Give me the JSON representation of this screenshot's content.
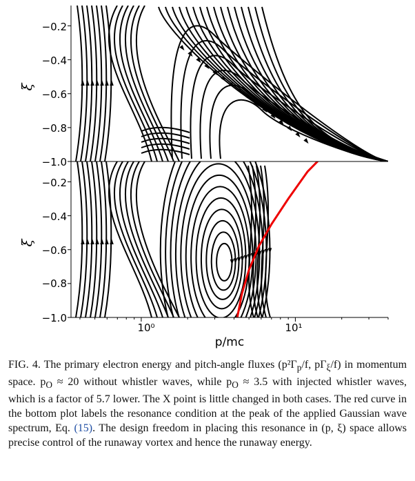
{
  "figure": {
    "xlabel": "p/mc",
    "ylabel": "ξ",
    "top_yticks": [
      "−0.2",
      "−0.4",
      "−0.6",
      "−0.8",
      "−1.0"
    ],
    "bottom_yticks": [
      "−0.2",
      "−0.4",
      "−0.6",
      "−0.8",
      "−1.0"
    ],
    "xticks": [
      "10⁰",
      "10¹"
    ]
  },
  "chart_data": [
    {
      "type": "streamplot",
      "panel": "top",
      "xlabel": "p/mc",
      "ylabel": "ξ",
      "xscale": "log",
      "xlim": [
        0.35,
        40
      ],
      "ylim": [
        -1.0,
        -0.08
      ],
      "yticks": [
        -0.2,
        -0.4,
        -0.6,
        -0.8,
        -1.0
      ],
      "xticks": [
        1,
        10
      ],
      "grid": false,
      "colors": {
        "streamlines": "#000000"
      }
    },
    {
      "type": "streamplot",
      "panel": "bottom",
      "xlabel": "p/mc",
      "ylabel": "ξ",
      "xscale": "log",
      "xlim": [
        0.35,
        40
      ],
      "ylim": [
        -1.0,
        -0.08
      ],
      "yticks": [
        -0.2,
        -0.4,
        -0.6,
        -0.8,
        -1.0
      ],
      "xticks": [
        1,
        10
      ],
      "grid": false,
      "colors": {
        "streamlines": "#000000",
        "resonance": "#ee0000"
      },
      "resonance_curve": {
        "x": [
          4.2,
          4.5,
          5.0,
          5.8,
          7.0,
          9.0,
          12.0,
          17.0
        ],
        "y": [
          -1.0,
          -0.86,
          -0.72,
          -0.58,
          -0.45,
          -0.3,
          -0.14,
          0.0
        ]
      }
    }
  ],
  "caption": {
    "label": "FIG. 4.",
    "part1": " The primary electron energy and pitch-angle fluxes (p²Γ",
    "sub_p": "p",
    "part2": "/f, pΓ",
    "sub_xi": "ξ",
    "part3": "/f) in momentum space. p",
    "sub_o1": "O",
    "part4": " ≈ 20 without whistler waves, while p",
    "sub_o2": "O",
    "part5": " ≈ 3.5 with injected whistler waves, which is a factor of 5.7 lower. The X point is little changed in both cases. The red curve in the bottom plot labels the resonance condition at the peak of the applied Gaussian wave spectrum, Eq. ",
    "eq_ref": "(15)",
    "part6": ". The design freedom in placing this resonance in (p, ξ) space allows precise control of the runaway vortex and hence the runaway energy."
  }
}
